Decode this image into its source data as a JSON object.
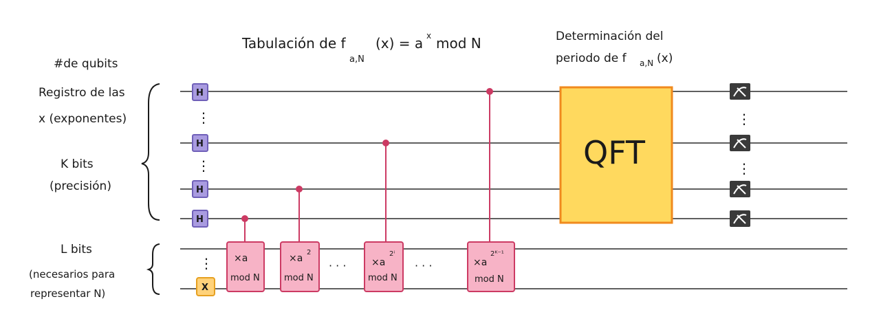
{
  "titles": {
    "tabulation": "Tabulación de f",
    "tabulation_sub": "a,N",
    "tabulation_rest": "(x) = a",
    "tabulation_sup": "x",
    "tabulation_end": "mod N",
    "period_line1": "Determinación del",
    "period_line2": "periodo de f",
    "period_sub": "a,N",
    "period_end": "(x)"
  },
  "left_labels": {
    "qubits_count": "#de qubits",
    "register_line1": "Registro de las",
    "register_line2": "x (exponentes)",
    "k_bits": "K bits",
    "precision": "(precisión)",
    "l_bits": "L bits",
    "needed_line1": "(necesarios para",
    "needed_line2": "representar N)"
  },
  "gates": {
    "hadamard": "H",
    "x_gate": "X",
    "qft": "QFT",
    "mult": [
      {
        "mult": "×a",
        "sup": "",
        "mod": "mod N"
      },
      {
        "mult": "×a",
        "sup": "2",
        "mod": "mod N"
      },
      {
        "mult": "×a",
        "sup": "2ⁱ",
        "mod": "mod N"
      },
      {
        "mult": "×a",
        "sup": "2ᴷ⁻¹",
        "mod": "mod N"
      }
    ],
    "measure_symbol": "⌀"
  },
  "ellipsis": {
    "vertical": "⋮",
    "horizontal": "· · ·"
  },
  "colors": {
    "hadamard_fill": "#a99be0",
    "hadamard_stroke": "#6f5fb8",
    "x_fill": "#ffd27a",
    "x_stroke": "#e6a020",
    "mult_fill": "#f7b3c6",
    "mult_stroke": "#cc3a63",
    "control": "#cc3a63",
    "qft_fill": "#ffd95e",
    "qft_stroke": "#f08a1e",
    "measure_fill": "#3a3a3a",
    "wire": "#2a2a2a"
  }
}
